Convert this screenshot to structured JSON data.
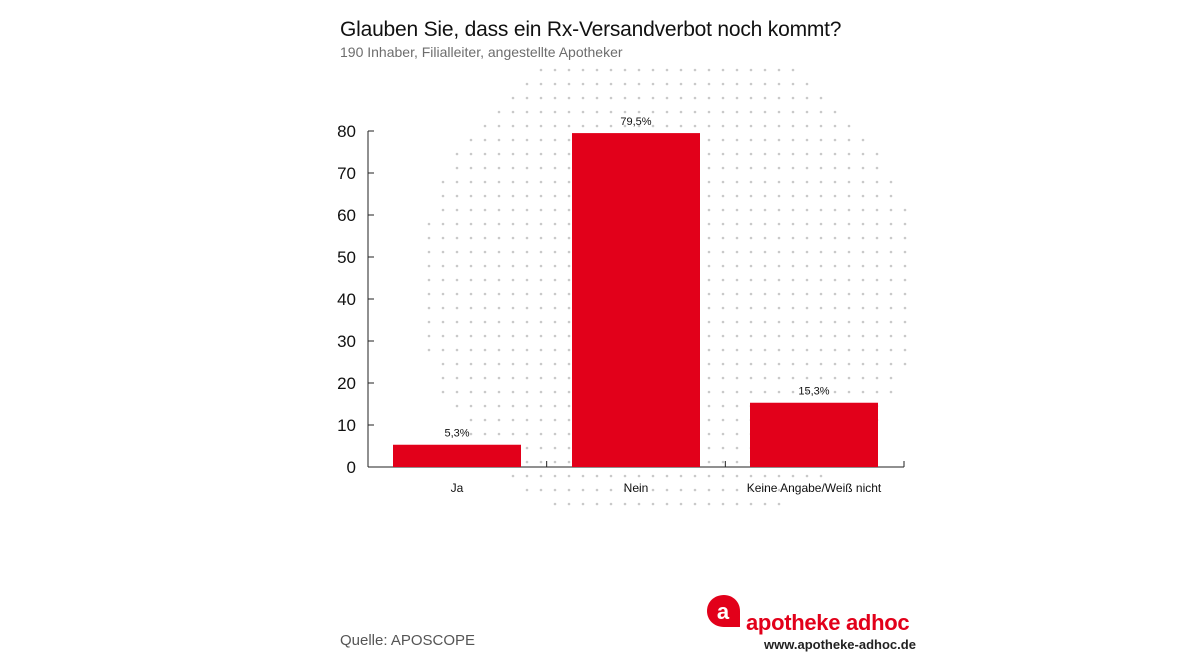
{
  "header": {
    "title": "Glauben Sie, dass ein Rx-Versandverbot noch kommt?",
    "subtitle": "190 Inhaber, Filialleiter, angestellte Apotheker"
  },
  "chart_data": {
    "type": "bar",
    "title": "Glauben Sie, dass ein Rx-Versandverbot noch kommt?",
    "subtitle": "190 Inhaber, Filialleiter, angestellte Apotheker",
    "categories": [
      "Ja",
      "Nein",
      "Keine Angabe/Weiß nicht"
    ],
    "values": [
      5.3,
      79.5,
      15.3
    ],
    "value_labels": [
      "5,3%",
      "79,5%",
      "15,3%"
    ],
    "ylim": [
      0,
      80
    ],
    "yticks": [
      0,
      10,
      20,
      30,
      40,
      50,
      60,
      70,
      80
    ],
    "xlabel": "",
    "ylabel": "",
    "grid": false,
    "bar_color": "#e2001a"
  },
  "footer": {
    "source": "Quelle: APOSCOPE",
    "brand_name": "apotheke adhoc",
    "brand_url": "www.apotheke-adhoc.de",
    "brand_color": "#e2001a",
    "logo_icon": "apotheke-adhoc-logo-icon"
  }
}
